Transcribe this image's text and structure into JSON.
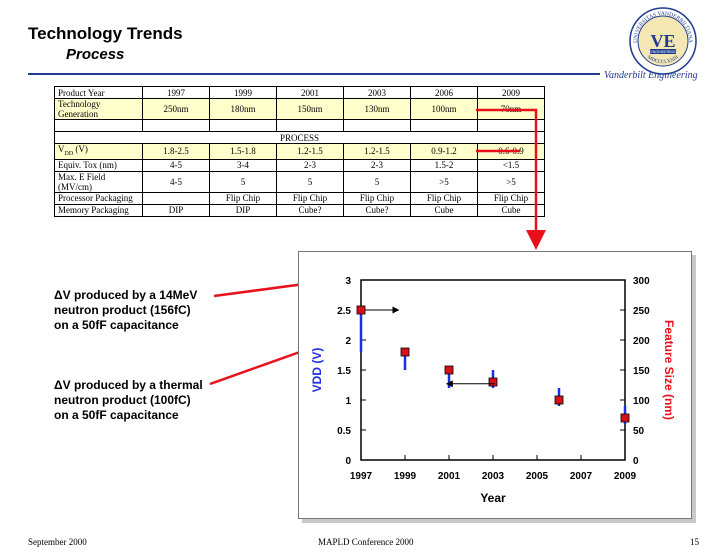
{
  "header": {
    "title": "Technology Trends",
    "subtitle": "Process",
    "org": "Vanderbilt Engineering"
  },
  "logo": {
    "text_top": "UNIVERSITAS VANDERBILTIANA",
    "text_bottom": "MDCCCLXXIII",
    "monogram": "VE",
    "band": "ENGINEERING"
  },
  "table": {
    "years": [
      "1997",
      "1999",
      "2001",
      "2003",
      "2006",
      "2009"
    ],
    "rows": [
      {
        "label": "Product Year",
        "cells": [
          "1997",
          "1999",
          "2001",
          "2003",
          "2006",
          "2009"
        ],
        "highlight": false
      },
      {
        "label": "Technology Generation",
        "cells": [
          "250nm",
          "180nm",
          "150nm",
          "130nm",
          "100nm",
          "70nm"
        ],
        "highlight": true
      },
      {
        "label": "",
        "cells": [
          "",
          "",
          "",
          "",
          "",
          ""
        ],
        "highlight": false
      },
      {
        "label": "PROCESS",
        "span": true,
        "highlight": false
      },
      {
        "label": "V",
        "label_sub": "DD",
        "label_suffix": " (V)",
        "cells": [
          "1.8-2.5",
          "1.5-1.8",
          "1.2-1.5",
          "1.2-1.5",
          "0.9-1.2",
          "0.6-0.9"
        ],
        "highlight": true
      },
      {
        "label": "Equiv. Tox (nm)",
        "cells": [
          "4-5",
          "3-4",
          "2-3",
          "2-3",
          "1.5-2",
          "<1.5"
        ],
        "highlight": false
      },
      {
        "label": "Max. E Field (MV/cm)",
        "cells": [
          "4-5",
          "5",
          "5",
          "5",
          ">5",
          ">5"
        ],
        "highlight": false
      },
      {
        "label": "Processor Packaging",
        "cells": [
          "",
          "Flip Chip",
          "Flip Chip",
          "Flip Chip",
          "Flip Chip",
          "Flip Chip"
        ],
        "highlight": false
      },
      {
        "label": "Memory Packaging",
        "cells": [
          "DIP",
          "DIP",
          "Cube?",
          "Cube?",
          "Cube",
          "Cube"
        ],
        "highlight": false
      }
    ]
  },
  "callouts": {
    "first": [
      "ΔV produced by a 14MeV",
      "neutron product (156fC)",
      "on a 50fF capacitance"
    ],
    "second": [
      "ΔV produced by a thermal",
      "neutron product (100fC)",
      "on a 50fF capacitance"
    ]
  },
  "colors": {
    "accent_red": "#e8101a",
    "vdd_blue": "#1a2ee8",
    "header_blue": "#1f3c8f",
    "marker_red": "#d8101a"
  },
  "chart_data": {
    "type": "scatter",
    "xlabel": "Year",
    "ylabel_left": "VDD (V)",
    "ylabel_right": "Feature Size (nm)",
    "x_ticks": [
      "1997",
      "1999",
      "2001",
      "2003",
      "2005",
      "2007",
      "2009"
    ],
    "y_left_ticks": [
      "0",
      "0.5",
      "1",
      "1.5",
      "2",
      "2.5",
      "3"
    ],
    "y_right_ticks": [
      "0",
      "50",
      "100",
      "150",
      "200",
      "250",
      "300"
    ],
    "xlim": [
      1997,
      2009
    ],
    "ylim_left": [
      0,
      3
    ],
    "ylim_right": [
      0,
      300
    ],
    "grid": false,
    "series": [
      {
        "x": [
          1997,
          1999,
          2001,
          2003,
          2006,
          2009
        ],
        "vdd_low": [
          1.8,
          1.5,
          1.2,
          1.2,
          0.9,
          0.6
        ],
        "vdd_high": [
          2.5,
          1.8,
          1.5,
          1.5,
          1.2,
          0.9
        ]
      },
      {
        "x": [
          1997,
          1999,
          2001,
          2003,
          2006,
          2009
        ],
        "values": [
          250,
          180,
          150,
          130,
          100,
          70
        ]
      }
    ],
    "annotations": [
      {
        "from": [
          1997,
          2.5
        ],
        "to": [
          1998.7,
          2.5
        ]
      },
      {
        "from": [
          2002.9,
          1.27
        ],
        "to": [
          2000.9,
          1.27
        ]
      }
    ]
  },
  "footer": {
    "left": "September 2000",
    "center": "MAPLD Conference 2000",
    "right": "15"
  }
}
